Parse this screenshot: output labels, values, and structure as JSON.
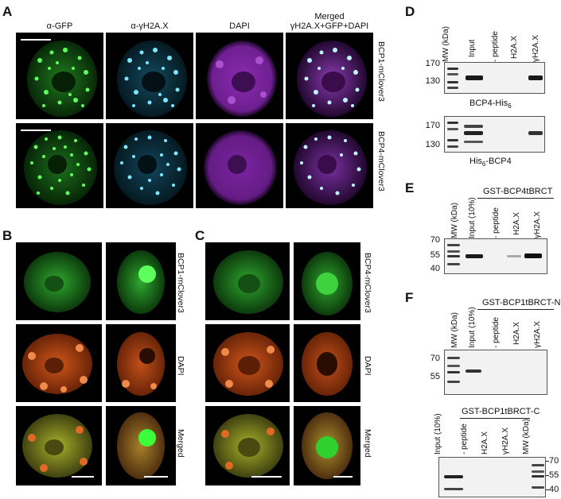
{
  "panels": {
    "A": {
      "label": "A",
      "columns": [
        "α-GFP",
        "α-γH2A.X",
        "DAPI"
      ],
      "merged_col_line1": "Merged",
      "merged_col_line2": "γH2A.X+GFP+DAPI",
      "rows": [
        "BCP1-mClover3",
        "BCP4-mClover3"
      ]
    },
    "B": {
      "label": "B",
      "rows": [
        "BCP1-mClover3",
        "DAPI",
        "Merged"
      ]
    },
    "C": {
      "label": "C",
      "rows": [
        "BCP4-mClover3",
        "DAPI",
        "Merged"
      ]
    },
    "D": {
      "label": "D",
      "lanes": [
        "MW (kDa)",
        "Input",
        "- peptide",
        "H2A.X",
        "γH2A.X"
      ],
      "ticks": [
        "170",
        "130"
      ],
      "blot1_caption_main": "BCP4-His",
      "blot1_caption_sub": "6",
      "blot2_caption_pre": "His",
      "blot2_caption_sub": "6",
      "blot2_caption_post": "-BCP4"
    },
    "E": {
      "label": "E",
      "lanes": [
        "MW (kDa)",
        "Input (10%)",
        "- peptide",
        "H2A.X",
        "γH2A.X"
      ],
      "group": "GST-BCP4tBRCT",
      "ticks": [
        "70",
        "55",
        "40"
      ]
    },
    "F": {
      "label": "F",
      "lanes": [
        "MW (kDa)",
        "Input (10%)",
        "- peptide",
        "H2A.X",
        "γH2A.X"
      ],
      "group": "GST-BCP1tBRCT-N",
      "ticks": [
        "70",
        "55"
      ],
      "group2": "GST-BCP1tBRCT-C",
      "lanes2": [
        "Input (10%)",
        "- peptide",
        "H2A.X",
        "γH2A.X",
        "MW (kDa)"
      ],
      "ticks2": [
        "70",
        "55",
        "40"
      ]
    }
  },
  "colors": {
    "gfp": "#2fd12f",
    "h2ax": "#3fd6ff",
    "dapi_a": "#b23ad6",
    "dapi_bc": "#e0661c",
    "merged_bc": "#a8b02a"
  }
}
